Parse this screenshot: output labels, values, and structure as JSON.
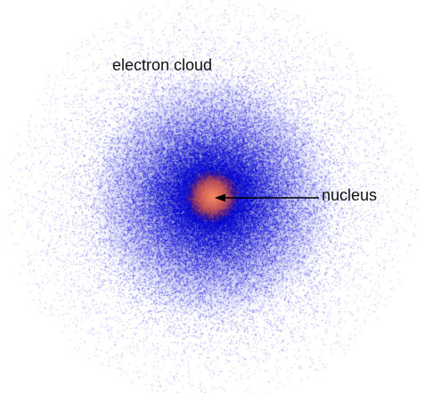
{
  "labels": {
    "cloud": "electron cloud",
    "nucleus": "nucleus"
  },
  "colors": {
    "background": "#ffffff",
    "electron": "#1a14d8",
    "electron_dense": "#0a0a7a",
    "nucleus_core": "#e8734e",
    "nucleus_edge": "#8a2a3a",
    "label_text": "#111111",
    "arrow": "#000000"
  },
  "icons": {
    "arrow": "arrow-left-icon"
  }
}
